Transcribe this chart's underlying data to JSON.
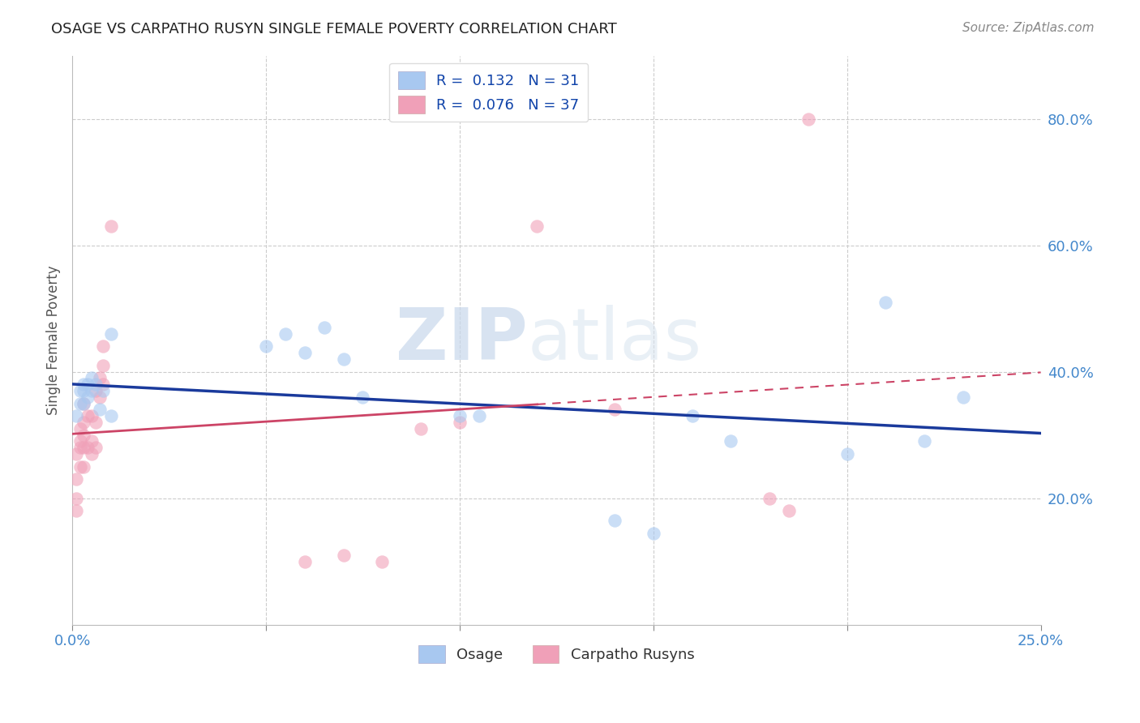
{
  "title": "OSAGE VS CARPATHO RUSYN SINGLE FEMALE POVERTY CORRELATION CHART",
  "source": "Source: ZipAtlas.com",
  "ylabel": "Single Female Poverty",
  "xlim": [
    0.0,
    0.25
  ],
  "ylim": [
    0.0,
    0.9
  ],
  "ytick_labels": [
    "20.0%",
    "40.0%",
    "60.0%",
    "80.0%"
  ],
  "ytick_positions": [
    0.2,
    0.4,
    0.6,
    0.8
  ],
  "watermark_zip": "ZIP",
  "watermark_atlas": "atlas",
  "osage_scatter_color": "#a8c8f0",
  "carpatho_scatter_color": "#f0a0b8",
  "trend_osage_color": "#1a3a9c",
  "trend_carpatho_color": "#cc4466",
  "legend_osage_label": "R =  0.132   N = 31",
  "legend_carpatho_label": "R =  0.076   N = 37",
  "legend_osage_patch_color": "#a8c8f0",
  "legend_carpatho_patch_color": "#f0a0b8",
  "tick_label_color": "#4488cc",
  "osage_x": [
    0.001,
    0.002,
    0.002,
    0.003,
    0.003,
    0.003,
    0.004,
    0.004,
    0.005,
    0.005,
    0.006,
    0.007,
    0.008,
    0.01,
    0.01,
    0.05,
    0.055,
    0.06,
    0.065,
    0.07,
    0.075,
    0.1,
    0.105,
    0.14,
    0.15,
    0.16,
    0.17,
    0.2,
    0.21,
    0.22,
    0.23
  ],
  "osage_y": [
    0.33,
    0.35,
    0.37,
    0.35,
    0.37,
    0.38,
    0.36,
    0.38,
    0.37,
    0.39,
    0.38,
    0.34,
    0.37,
    0.33,
    0.46,
    0.44,
    0.46,
    0.43,
    0.47,
    0.42,
    0.36,
    0.33,
    0.33,
    0.165,
    0.145,
    0.33,
    0.29,
    0.27,
    0.51,
    0.29,
    0.36
  ],
  "carpatho_x": [
    0.001,
    0.001,
    0.001,
    0.001,
    0.002,
    0.002,
    0.002,
    0.002,
    0.003,
    0.003,
    0.003,
    0.003,
    0.003,
    0.004,
    0.004,
    0.005,
    0.005,
    0.005,
    0.006,
    0.006,
    0.006,
    0.007,
    0.007,
    0.008,
    0.008,
    0.008,
    0.01,
    0.06,
    0.07,
    0.08,
    0.09,
    0.1,
    0.12,
    0.14,
    0.18,
    0.185,
    0.19
  ],
  "carpatho_y": [
    0.18,
    0.2,
    0.23,
    0.27,
    0.25,
    0.28,
    0.29,
    0.31,
    0.25,
    0.28,
    0.3,
    0.32,
    0.35,
    0.28,
    0.33,
    0.27,
    0.29,
    0.33,
    0.28,
    0.32,
    0.37,
    0.36,
    0.39,
    0.38,
    0.41,
    0.44,
    0.63,
    0.1,
    0.11,
    0.1,
    0.31,
    0.32,
    0.63,
    0.34,
    0.2,
    0.18,
    0.8
  ],
  "grid_color": "#cccccc",
  "background_color": "#ffffff"
}
